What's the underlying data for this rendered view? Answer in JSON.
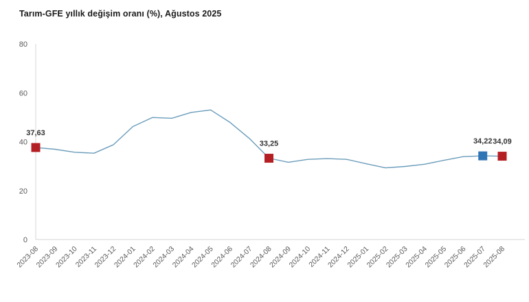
{
  "title": "Tarım-GFE yıllık değişim oranı (%), Ağustos 2025",
  "colors": {
    "line": "#6a9cba",
    "red_marker": "#b41f24",
    "blue_marker": "#2f75b5",
    "axis_line": "#d6d6d6",
    "tick_text": "#595959",
    "value_label_text": "#333333"
  },
  "chart_data": {
    "type": "line",
    "title": "Tarım-GFE yıllık değişim oranı (%), Ağustos 2025",
    "xlabel": "",
    "ylabel": "",
    "ylim": [
      0,
      80
    ],
    "yticks": [
      0,
      20,
      40,
      60,
      80
    ],
    "grid": false,
    "legend": "none",
    "x": [
      "2023-08",
      "2023-09",
      "2023-10",
      "2023-11",
      "2023-12",
      "2024-01",
      "2024-02",
      "2024-03",
      "2024-04",
      "2024-05",
      "2024-06",
      "2024-07",
      "2024-08",
      "2024-09",
      "2024-10",
      "2024-11",
      "2024-12",
      "2025-01",
      "2025-02",
      "2025-03",
      "2025-04",
      "2025-05",
      "2025-06",
      "2025-07",
      "2025-08"
    ],
    "series": [
      {
        "name": "Tarım-GFE yıllık değişim oranı (%)",
        "values": [
          37.63,
          36.9,
          35.7,
          35.3,
          38.8,
          46.2,
          49.9,
          49.6,
          52.0,
          53.0,
          47.9,
          41.3,
          33.25,
          31.6,
          32.8,
          33.1,
          32.8,
          31.0,
          29.3,
          29.9,
          30.8,
          32.4,
          33.9,
          34.22,
          34.09
        ]
      }
    ],
    "highlights": [
      {
        "x": "2023-08",
        "value": 37.63,
        "label": "37,63",
        "color": "red"
      },
      {
        "x": "2024-08",
        "value": 33.25,
        "label": "33,25",
        "color": "red"
      },
      {
        "x": "2025-07",
        "value": 34.22,
        "label": "34,22",
        "color": "blue"
      },
      {
        "x": "2025-08",
        "value": 34.09,
        "label": "34,09",
        "color": "red"
      }
    ]
  }
}
